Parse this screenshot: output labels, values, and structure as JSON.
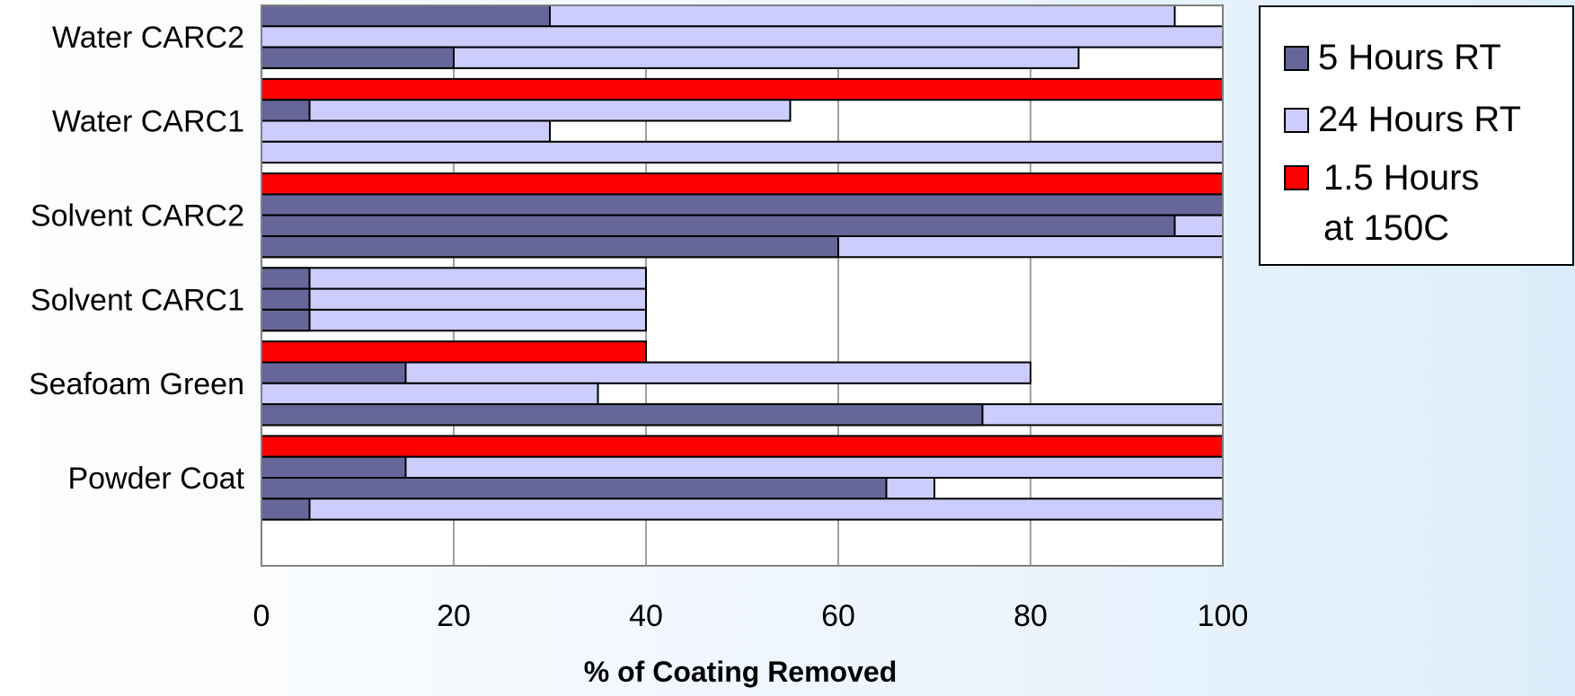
{
  "colors": {
    "five_hours": "#666699",
    "twenty_four_hours": "#ccccff",
    "one_point_five_hours": "#ff0000",
    "edge": "#000000",
    "grid": "#808080"
  },
  "chart_data": {
    "type": "bar",
    "orientation": "horizontal",
    "stacking": "overlay (5 Hours RT drawn over 24 Hours RT)",
    "xlabel": "% of Coating Removed",
    "xlim": [
      0,
      100
    ],
    "xticks": [
      "0",
      "20",
      "40",
      "60",
      "80",
      "100"
    ],
    "grid": "vertical",
    "legend_placement": "right",
    "legend": [
      {
        "key": "five_hours",
        "label": "5 Hours RT"
      },
      {
        "key": "twenty_four_hours",
        "label": "24 Hours RT"
      },
      {
        "key": "one_point_five_hours",
        "label": "1.5 Hours at 150C"
      }
    ],
    "categories": [
      {
        "label": "Water CARC2",
        "bars": [
          {
            "five_hours": 30,
            "twenty_four_hours": 95
          },
          {
            "twenty_four_hours": 100
          },
          {
            "five_hours": 20,
            "twenty_four_hours": 85
          }
        ]
      },
      {
        "label": "Water CARC1",
        "bars": [
          {
            "one_point_five_hours": 100
          },
          {
            "five_hours": 5,
            "twenty_four_hours": 55
          },
          {
            "twenty_four_hours": 30
          },
          {
            "twenty_four_hours": 100
          }
        ]
      },
      {
        "label": "Solvent CARC2",
        "bars": [
          {
            "one_point_five_hours": 100
          },
          {
            "five_hours": 100
          },
          {
            "five_hours": 95,
            "twenty_four_hours": 100
          },
          {
            "five_hours": 60,
            "twenty_four_hours": 100
          }
        ]
      },
      {
        "label": "Solvent CARC1",
        "bars": [
          {
            "five_hours": 5,
            "twenty_four_hours": 40
          },
          {
            "five_hours": 5,
            "twenty_four_hours": 40
          },
          {
            "five_hours": 5,
            "twenty_four_hours": 40
          }
        ]
      },
      {
        "label": "Seafoam Green",
        "bars": [
          {
            "one_point_five_hours": 40
          },
          {
            "five_hours": 15,
            "twenty_four_hours": 80
          },
          {
            "twenty_four_hours": 35
          },
          {
            "five_hours": 75,
            "twenty_four_hours": 100
          }
        ]
      },
      {
        "label": "Powder Coat",
        "bars": [
          {
            "one_point_five_hours": 100
          },
          {
            "five_hours": 15,
            "twenty_four_hours": 100
          },
          {
            "five_hours": 65,
            "twenty_four_hours": 70
          },
          {
            "five_hours": 5,
            "twenty_four_hours": 100
          }
        ]
      }
    ]
  }
}
